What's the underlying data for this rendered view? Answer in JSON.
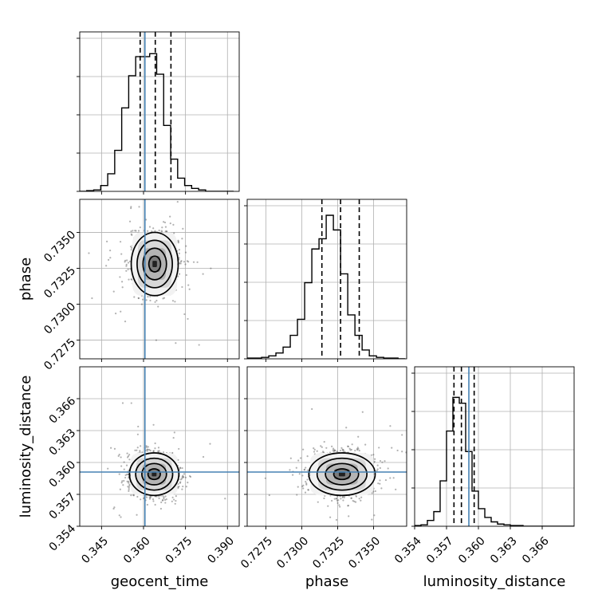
{
  "chart_data": {
    "type": "corner",
    "parameters": [
      "geocent_time",
      "phase",
      "luminosity_distance"
    ],
    "truths": {
      "geocent_time": 0.3605,
      "luminosity_distance": 0.3591
    },
    "truth_color": "#4682b4",
    "ranges": {
      "geocent_time": [
        0.3372,
        0.3942
      ],
      "phase": [
        0.7262,
        0.7373
      ],
      "luminosity_distance": [
        0.354,
        0.369
      ]
    },
    "ticks": {
      "geocent_time": [
        0.345,
        0.36,
        0.375,
        0.39
      ],
      "phase": [
        0.7275,
        0.73,
        0.7325,
        0.735
      ],
      "luminosity_distance": [
        0.354,
        0.357,
        0.36,
        0.363,
        0.366
      ]
    },
    "tick_labels": {
      "geocent_time": [
        "0.345",
        "0.360",
        "0.375",
        "0.390"
      ],
      "phase": [
        "0.7275",
        "0.7300",
        "0.7325",
        "0.7350"
      ],
      "luminosity_distance": [
        "0.354",
        "0.357",
        "0.360",
        "0.363",
        "0.366"
      ]
    },
    "axis_labels": {
      "geocent_time": "geocent_time",
      "phase": "phase",
      "luminosity_distance": "luminosity_distance"
    },
    "quantiles": {
      "geocent_time": [
        0.3588,
        0.3642,
        0.3698
      ],
      "phase": [
        0.7314,
        0.7327,
        0.734
      ],
      "luminosity_distance": [
        0.3577,
        0.3584,
        0.3596
      ]
    },
    "histograms": {
      "geocent_time": {
        "edges": [
          0.3372,
          0.3397,
          0.3422,
          0.3447,
          0.3472,
          0.3497,
          0.3522,
          0.3547,
          0.3572,
          0.3597,
          0.3622,
          0.3647,
          0.3672,
          0.3697,
          0.3722,
          0.3747,
          0.3772,
          0.3797,
          0.3822,
          0.3847,
          0.3872,
          0.3897,
          0.3922
        ],
        "counts": [
          0,
          0.005,
          0.01,
          0.04,
          0.12,
          0.28,
          0.57,
          0.79,
          0.92,
          0.92,
          0.94,
          0.8,
          0.45,
          0.22,
          0.09,
          0.04,
          0.02,
          0.01,
          0,
          0,
          0,
          0
        ]
      },
      "phase": {
        "edges": [
          0.7262,
          0.7267,
          0.7272,
          0.7277,
          0.7282,
          0.7287,
          0.7292,
          0.7297,
          0.7302,
          0.7307,
          0.7312,
          0.7317,
          0.7322,
          0.7327,
          0.7332,
          0.7337,
          0.7342,
          0.7347,
          0.7352,
          0.7357,
          0.7362,
          0.7367,
          0.7372
        ],
        "counts": [
          0.005,
          0.005,
          0.01,
          0.02,
          0.04,
          0.08,
          0.16,
          0.27,
          0.52,
          0.75,
          0.82,
          0.98,
          0.88,
          0.58,
          0.3,
          0.16,
          0.06,
          0.02,
          0.01,
          0.005,
          0.005,
          0
        ]
      },
      "luminosity_distance": {
        "edges": [
          0.354,
          0.3546,
          0.3552,
          0.3558,
          0.3564,
          0.357,
          0.3576,
          0.3582,
          0.3588,
          0.3594,
          0.36,
          0.3606,
          0.3612,
          0.3618,
          0.3624,
          0.363,
          0.3636,
          0.3642,
          0.3648,
          0.3654,
          0.366,
          0.3666,
          0.3672,
          0.3678,
          0.3684,
          0.369
        ],
        "counts": [
          0.005,
          0.01,
          0.04,
          0.1,
          0.31,
          0.65,
          0.88,
          0.84,
          0.51,
          0.24,
          0.12,
          0.06,
          0.03,
          0.015,
          0.01,
          0.005,
          0.005,
          0,
          0,
          0,
          0,
          0,
          0,
          0,
          0
        ]
      }
    },
    "joint": [
      {
        "x": "geocent_time",
        "y": "phase",
        "center": [
          0.364,
          0.7328
        ],
        "sigma": [
          0.004,
          0.0011
        ],
        "contour_levels": [
          0.5,
          1.0,
          1.5,
          2.0
        ]
      },
      {
        "x": "geocent_time",
        "y": "luminosity_distance",
        "center": [
          0.3638,
          0.3589
        ],
        "sigma": [
          0.0042,
          0.001
        ],
        "contour_levels": [
          0.5,
          1.0,
          1.5,
          2.0
        ]
      },
      {
        "x": "phase",
        "y": "luminosity_distance",
        "center": [
          0.7328,
          0.3589
        ],
        "sigma": [
          0.0011,
          0.001
        ],
        "contour_levels": [
          0.5,
          1.0,
          1.5,
          2.0
        ]
      }
    ]
  }
}
